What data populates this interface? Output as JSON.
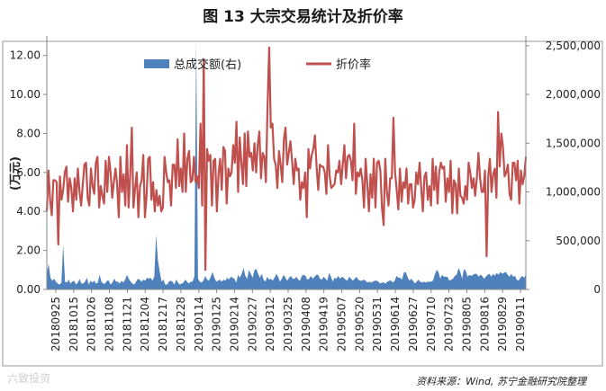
{
  "figure": {
    "title": "图 13  大宗交易统计及折价率",
    "source": "资料来源：Wind, 苏宁金融研究院整理",
    "watermark": "六致投资"
  },
  "colors": {
    "bars": "#4f81bd",
    "line": "#c0504d",
    "frame": "#999999"
  },
  "chart_data": {
    "type": "bar+line",
    "title": "",
    "left_axis": {
      "label": "(万元)",
      "ticks": [
        "0.00",
        "2.00",
        "4.00",
        "6.00",
        "8.00",
        "10.00",
        "12.00"
      ],
      "range": [
        0,
        13
      ]
    },
    "right_axis": {
      "label": "",
      "ticks": [
        "0",
        "500,000",
        "1,000,000",
        "1,500,000",
        "2,000,000",
        "2,500,000"
      ],
      "range": [
        0,
        2600000
      ]
    },
    "x_tick_labels": [
      "20180925",
      "20181015",
      "20181026",
      "20181108",
      "20181121",
      "20181204",
      "20181217",
      "20181228",
      "20190114",
      "20190125",
      "20190214",
      "20190227",
      "20190312",
      "20190325",
      "20190408",
      "20190419",
      "20190507",
      "20190520",
      "20190531",
      "20190614",
      "20190627",
      "20190710",
      "20190723",
      "20190805",
      "20190816",
      "20190829",
      "20190911"
    ],
    "series": [
      {
        "name": "总成交额(右)",
        "kind": "area",
        "axis": "right",
        "values": [
          170000,
          260000,
          120000,
          90000,
          110000,
          80000,
          60000,
          50000,
          70000,
          460000,
          80000,
          70000,
          100000,
          60000,
          80000,
          90000,
          50000,
          70000,
          110000,
          60000,
          60000,
          80000,
          120000,
          50000,
          90000,
          70000,
          90000,
          60000,
          70000,
          150000,
          80000,
          60000,
          60000,
          90000,
          90000,
          50000,
          70000,
          110000,
          80000,
          80000,
          60000,
          90000,
          70000,
          100000,
          150000,
          110000,
          80000,
          60000,
          50000,
          80000,
          110000,
          100000,
          80000,
          100000,
          90000,
          120000,
          110000,
          120000,
          90000,
          130000,
          560000,
          300000,
          180000,
          80000,
          100000,
          50000,
          50000,
          80000,
          90000,
          80000,
          50000,
          100000,
          70000,
          50000,
          60000,
          70000,
          100000,
          80000,
          60000,
          80000,
          80000,
          130000,
          2550000,
          110000,
          80000,
          70000,
          90000,
          140000,
          100000,
          90000,
          130000,
          180000,
          120000,
          80000,
          90000,
          100000,
          80000,
          100000,
          90000,
          120000,
          100000,
          130000,
          120000,
          110000,
          70000,
          150000,
          120000,
          160000,
          220000,
          140000,
          110000,
          200000,
          160000,
          120000,
          200000,
          210000,
          160000,
          120000,
          160000,
          100000,
          80000,
          130000,
          100000,
          110000,
          90000,
          120000,
          160000,
          130000,
          80000,
          110000,
          150000,
          120000,
          90000,
          120000,
          140000,
          110000,
          110000,
          130000,
          100000,
          90000,
          140000,
          150000,
          140000,
          100000,
          110000,
          140000,
          110000,
          130000,
          150000,
          150000,
          110000,
          100000,
          130000,
          110000,
          90000,
          170000,
          130000,
          80000,
          120000,
          110000,
          140000,
          110000,
          130000,
          120000,
          100000,
          90000,
          130000,
          110000,
          90000,
          110000,
          130000,
          100000,
          90000,
          90000,
          100000,
          90000,
          70000,
          80000,
          70000,
          80000,
          90000,
          90000,
          80000,
          60000,
          70000,
          70000,
          60000,
          80000,
          90000,
          90000,
          70000,
          90000,
          140000,
          120000,
          120000,
          100000,
          170000,
          180000,
          130000,
          90000,
          110000,
          90000,
          60000,
          80000,
          100000,
          80000,
          70000,
          80000,
          70000,
          80000,
          80000,
          80000,
          90000,
          150000,
          200000,
          180000,
          110000,
          150000,
          130000,
          130000,
          130000,
          90000,
          100000,
          110000,
          140000,
          150000,
          220000,
          180000,
          110000,
          210000,
          190000,
          130000,
          150000,
          140000,
          150000,
          160000,
          160000,
          130000,
          150000,
          140000,
          110000,
          130000,
          150000,
          160000,
          130000,
          160000,
          140000,
          170000,
          150000,
          180000,
          160000,
          170000,
          180000,
          150000,
          130000,
          160000,
          130000,
          140000,
          100000,
          90000,
          120000,
          140000,
          120000,
          150000
        ]
      },
      {
        "name": "折价率",
        "kind": "line",
        "axis": "left",
        "values": [
          4.0,
          6.1,
          4.6,
          3.8,
          5.6,
          5.6,
          5.5,
          2.3,
          5.8,
          4.6,
          5.1,
          6.0,
          6.3,
          4.5,
          5.7,
          5.2,
          4.0,
          5.7,
          4.6,
          6.2,
          5.0,
          4.3,
          5.4,
          6.4,
          6.5,
          4.7,
          4.3,
          6.2,
          5.3,
          4.9,
          6.5,
          6.8,
          4.2,
          5.3,
          4.8,
          4.4,
          6.6,
          5.0,
          6.8,
          6.0,
          4.7,
          5.5,
          6.2,
          5.4,
          3.7,
          6.8,
          5.0,
          5.9,
          4.3,
          7.4,
          4.2,
          5.9,
          8.3,
          4.2,
          5.2,
          6.0,
          3.7,
          5.3,
          5.6,
          6.9,
          3.7,
          4.8,
          6.7,
          6.8,
          4.6,
          5.5,
          4.0,
          5.1,
          4.3,
          4.8,
          4.0,
          4.2,
          6.8,
          6.0,
          5.5,
          5.6,
          4.3,
          6.4,
          6.4,
          5.2,
          7.7,
          5.3,
          6.2,
          5.0,
          8.0,
          5.0,
          6.7,
          7.1,
          5.5,
          5.6,
          6.8,
          5.5,
          5.8,
          5.2,
          8.5,
          4.3,
          11.8,
          1.0,
          7.2,
          6.6,
          6.9,
          4.3,
          6.6,
          6.7,
          4.0,
          5.9,
          6.7,
          5.1,
          7.3,
          7.1,
          4.4,
          6.2,
          5.8,
          6.0,
          7.4,
          6.5,
          8.6,
          5.0,
          7.8,
          6.5,
          5.4,
          8.0,
          5.3,
          8.1,
          6.8,
          7.0,
          6.1,
          7.5,
          6.0,
          7.4,
          8.1,
          5.7,
          7.0,
          6.8,
          5.5,
          9.4,
          12.4,
          8.3,
          8.5,
          6.7,
          6.4,
          5.2,
          7.1,
          6.4,
          5.5,
          7.7,
          8.3,
          6.4,
          7.0,
          7.6,
          6.6,
          5.4,
          6.7,
          6.1,
          6.2,
          4.6,
          5.5,
          5.2,
          6.0,
          3.7,
          7.2,
          6.2,
          6.9,
          7.2,
          7.9,
          6.3,
          5.1,
          6.4,
          6.3,
          6.3,
          6.0,
          4.9,
          7.4,
          5.8,
          5.2,
          5.3,
          5.4,
          6.1,
          6.0,
          6.6,
          5.4,
          6.4,
          7.4,
          5.7,
          6.8,
          6.9,
          6.6,
          5.6,
          8.5,
          4.9,
          6.0,
          5.8,
          6.2,
          5.6,
          4.2,
          6.7,
          5.4,
          4.0,
          5.9,
          4.7,
          6.7,
          4.2,
          6.5,
          6.6,
          6.1,
          4.2,
          3.3,
          6.7,
          5.0,
          4.3,
          5.7,
          5.7,
          8.8,
          6.0,
          5.1,
          4.1,
          6.2,
          4.5,
          5.5,
          5.2,
          6.2,
          4.4,
          5.4,
          5.4,
          4.2,
          4.6,
          6.0,
          5.4,
          6.5,
          5.2,
          4.0,
          5.8,
          6.0,
          4.6,
          5.3,
          4.3,
          6.7,
          5.1,
          6.3,
          4.4,
          6.0,
          6.5,
          6.2,
          6.3,
          4.5,
          5.7,
          5.0,
          6.6,
          3.9,
          5.6,
          5.4,
          3.9,
          6.2,
          4.8,
          4.7,
          4.4,
          5.3,
          4.6,
          6.5,
          6.0,
          5.2,
          5.7,
          4.8,
          5.7,
          7.0,
          5.7,
          5.0,
          5.0,
          6.1,
          1.7,
          5.8,
          6.7,
          5.0,
          5.9,
          6.2,
          4.7,
          9.1,
          6.3,
          8.0,
          7.3,
          5.8,
          6.0,
          6.4,
          4.9,
          4.6,
          6.5,
          6.5,
          5.6,
          6.6,
          4.4,
          6.1,
          5.4,
          5.8,
          6.8
        ]
      }
    ],
    "grid": false,
    "legend_position": "top-center"
  }
}
